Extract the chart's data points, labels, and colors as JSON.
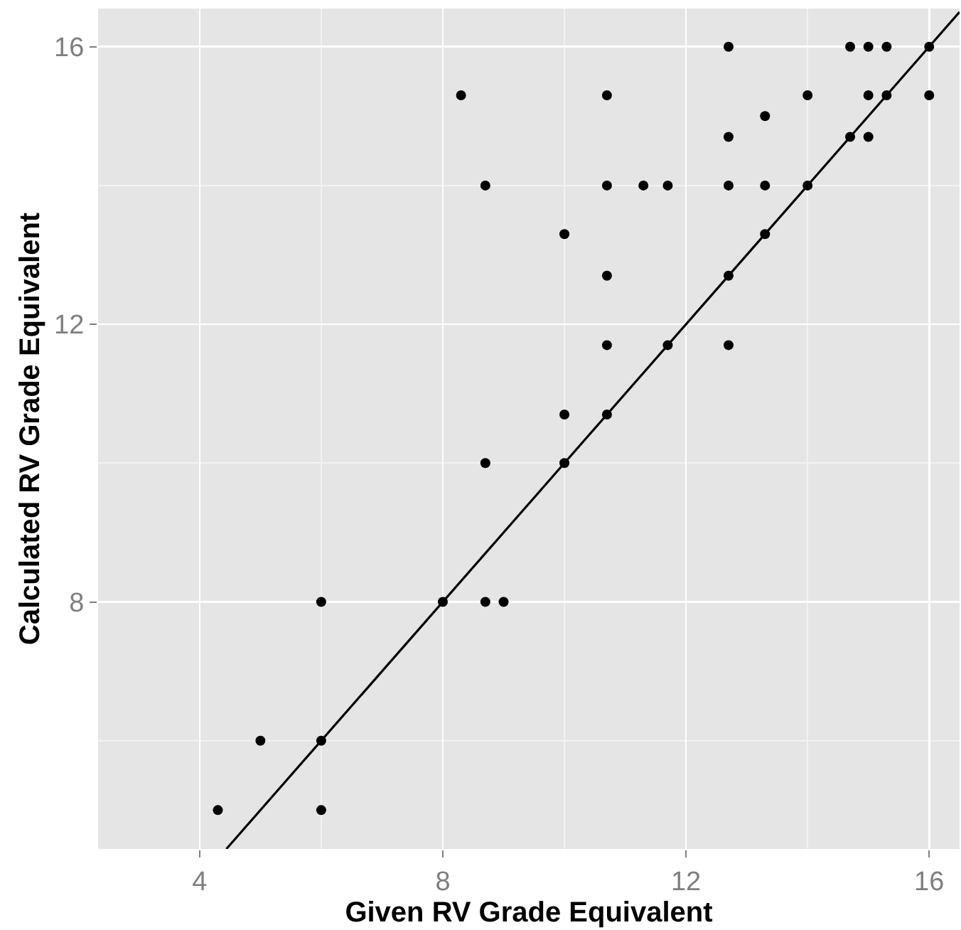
{
  "chart_data": {
    "type": "scatter",
    "xlabel": "Given RV Grade Equivalent",
    "ylabel": "Calculated RV Grade Equivalent",
    "xlim": [
      2.33,
      16.5
    ],
    "ylim": [
      4.44,
      16.55
    ],
    "xticks": [
      {
        "value": 4,
        "label": "4"
      },
      {
        "value": 6,
        "label": null
      },
      {
        "value": 8,
        "label": "8"
      },
      {
        "value": 10,
        "label": null
      },
      {
        "value": 12,
        "label": "12"
      },
      {
        "value": 14,
        "label": null
      },
      {
        "value": 16,
        "label": "16"
      }
    ],
    "yticks": [
      {
        "value": 6,
        "label": null
      },
      {
        "value": 8,
        "label": "8"
      },
      {
        "value": 10,
        "label": null
      },
      {
        "value": 12,
        "label": "12"
      },
      {
        "value": 14,
        "label": null
      },
      {
        "value": 16,
        "label": "16"
      }
    ],
    "grid": true,
    "marker": "circle",
    "series": [
      {
        "color": "#000000",
        "x": [
          8.3,
          8.7,
          8.7,
          6,
          8,
          8.7,
          9,
          5,
          6,
          4.3,
          6,
          12.7,
          14.7,
          15,
          15.3,
          16,
          10.7,
          14,
          15,
          15.3,
          16,
          13.3,
          12.7,
          14.7,
          15,
          10.7,
          11.3,
          11.7,
          12.7,
          13.3,
          14,
          10,
          13.3,
          10.7,
          12.7,
          10.7,
          11.7,
          12.7,
          10,
          10.7,
          10
        ],
        "values": [
          15.3,
          14,
          10,
          8,
          8,
          8,
          8,
          6,
          6,
          5,
          5,
          16,
          16,
          16,
          16,
          16,
          15.3,
          15.3,
          15.3,
          15.3,
          15.3,
          15,
          14.7,
          14.7,
          14.7,
          14,
          14,
          14,
          14,
          14,
          14,
          13.3,
          13.3,
          12.7,
          12.7,
          11.7,
          11.7,
          11.7,
          10.7,
          10.7,
          10
        ]
      },
      {
        "type": "line",
        "color": "#000000",
        "line_style": "solid",
        "marker": "none",
        "x": [
          4.44,
          16.5
        ],
        "values": [
          4.44,
          16.5
        ]
      }
    ]
  }
}
